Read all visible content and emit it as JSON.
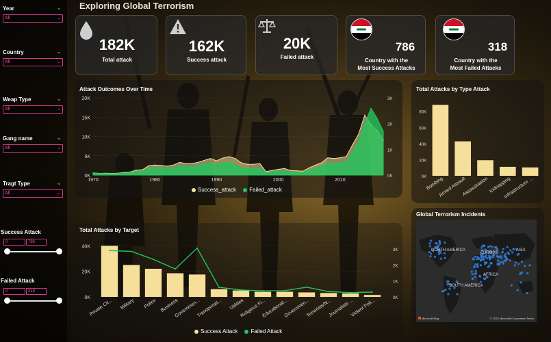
{
  "title": "Exploring Global Terrorism",
  "slicers": [
    {
      "label": "Year",
      "value": "All"
    },
    {
      "label": "Country",
      "value": "All"
    },
    {
      "label": "Weap Type",
      "value": "All"
    },
    {
      "label": "Gang name",
      "value": "All"
    },
    {
      "label": "Tragt Type",
      "value": "All"
    }
  ],
  "ranges": [
    {
      "label": "Success Attack",
      "min": "0",
      "max": "786"
    },
    {
      "label": "Failed Attack",
      "min": "0",
      "max": "318"
    }
  ],
  "kpis": {
    "total": {
      "value": "182K",
      "label": "Total attack",
      "icon": "drop-icon"
    },
    "success": {
      "value": "162K",
      "label": "Success attack",
      "icon": "warning-icon"
    },
    "failed": {
      "value": "20K",
      "label": "Failed attack",
      "icon": "scales-icon"
    },
    "most_success": {
      "value": "786",
      "label_line1": "Country with the",
      "label_line2": "Most Success Attacks",
      "icon": "iraq-flag-icon"
    },
    "most_failed": {
      "value": "318",
      "label_line1": "Country with the",
      "label_line2": "Most Failed Attacks",
      "icon": "iraq-flag-icon"
    }
  },
  "colors": {
    "success": "#f5df9a",
    "failed": "#22c55e",
    "slicer_accent": "#d33a8c",
    "map_dots": "#2f7fe0"
  },
  "map": {
    "title": "Global Terrorism Incidents",
    "labels": [
      "NORTH AMERICA",
      "EUROPE",
      "ASIA",
      "AFRICA",
      "SOUTH AMERICA"
    ],
    "credit": "Microsoft Bing",
    "copyright": "© 2023 Microsoft Corporation  Terms"
  },
  "chart_data": [
    {
      "id": "outcomes",
      "type": "area",
      "title": "Attack Outcomes Over Time",
      "x_ticks": [
        "1970",
        "1980",
        "1990",
        "2000",
        "2010"
      ],
      "y_ticks_left": [
        "0K",
        "5K",
        "10K",
        "15K",
        "20K"
      ],
      "y_ticks_right": [
        "0K",
        "1K",
        "2K",
        "3K"
      ],
      "ylim_left": [
        0,
        20000
      ],
      "ylim_right": [
        0,
        3000
      ],
      "series": [
        {
          "name": "Success_attack",
          "axis": "left",
          "x": [
            1970,
            1971,
            1972,
            1973,
            1974,
            1975,
            1976,
            1977,
            1978,
            1979,
            1980,
            1981,
            1982,
            1983,
            1984,
            1985,
            1986,
            1987,
            1988,
            1989,
            1990,
            1991,
            1992,
            1993,
            1994,
            1995,
            1996,
            1997,
            1998,
            1999,
            2000,
            2001,
            2002,
            2003,
            2004,
            2005,
            2006,
            2007,
            2008,
            2009,
            2010,
            2011,
            2012,
            2013,
            2014,
            2015,
            2016,
            2017
          ],
          "values": [
            600,
            450,
            500,
            420,
            500,
            700,
            800,
            1300,
            1400,
            2400,
            2600,
            2500,
            2300,
            2600,
            3300,
            3000,
            3000,
            3300,
            3800,
            4300,
            3700,
            4400,
            4800,
            4300,
            3200,
            2800,
            2800,
            3000,
            900,
            1200,
            1500,
            1700,
            1200,
            1100,
            1000,
            1900,
            2600,
            3200,
            4500,
            4300,
            4500,
            4800,
            7800,
            10600,
            15500,
            13000,
            11500,
            9000
          ]
        },
        {
          "name": "Failed_attack",
          "axis": "right",
          "x": [
            1970,
            1971,
            1972,
            1973,
            1974,
            1975,
            1976,
            1977,
            1978,
            1979,
            1980,
            1981,
            1982,
            1983,
            1984,
            1985,
            1986,
            1987,
            1988,
            1989,
            1990,
            1991,
            1992,
            1993,
            1994,
            1995,
            1996,
            1997,
            1998,
            1999,
            2000,
            2001,
            2002,
            2003,
            2004,
            2005,
            2006,
            2007,
            2008,
            2009,
            2010,
            2011,
            2012,
            2013,
            2014,
            2015,
            2016,
            2017
          ],
          "values": [
            90,
            60,
            60,
            50,
            60,
            80,
            100,
            150,
            160,
            260,
            300,
            290,
            270,
            290,
            370,
            340,
            330,
            380,
            430,
            470,
            410,
            480,
            500,
            420,
            300,
            260,
            260,
            270,
            100,
            130,
            150,
            170,
            130,
            120,
            120,
            200,
            280,
            350,
            480,
            460,
            500,
            520,
            900,
            1300,
            2000,
            2600,
            2200,
            1700
          ]
        }
      ]
    },
    {
      "id": "by_type",
      "type": "bar",
      "title": "Total Attacks by Type Attack",
      "categories": [
        "Bombing",
        "Armed Assault",
        "Assassination",
        "Kidnapping",
        "Infrastructure ..."
      ],
      "values": [
        88000,
        42700,
        19300,
        11100,
        10400
      ],
      "y_ticks": [
        "0K",
        "20K",
        "40K",
        "60K",
        "80K"
      ],
      "ylim": [
        0,
        95000
      ]
    },
    {
      "id": "by_target",
      "type": "bar",
      "title": "Total Attacks by Target",
      "categories": [
        "Private Cit...",
        "Military",
        "Police",
        "Business",
        "Governmen...",
        "Transportat...",
        "Utilities",
        "Religious Fi...",
        "Educational...",
        "Governmen...",
        "Terrorists/N...",
        "Journalists ...",
        "Violent Poli..."
      ],
      "y_ticks_left": [
        "0K",
        "20K",
        "40K"
      ],
      "y_ticks_right": [
        "0K",
        "1K",
        "2K",
        "3K"
      ],
      "ylim_left": [
        0,
        45000
      ],
      "ylim_right": [
        0,
        3600
      ],
      "series": [
        {
          "name": "Success Attack",
          "type": "bar",
          "axis": "left",
          "values": [
            40000,
            25000,
            22000,
            18500,
            17500,
            6000,
            5000,
            4000,
            4000,
            3500,
            3000,
            2700,
            1500
          ]
        },
        {
          "name": "Failed Attack",
          "type": "line",
          "axis": "right",
          "values": [
            2900,
            2850,
            2350,
            1750,
            3050,
            600,
            430,
            380,
            390,
            610,
            330,
            270,
            300
          ]
        }
      ]
    }
  ],
  "legends": {
    "outcomes": [
      "Success_attack",
      "Failed_attack"
    ],
    "target": [
      "Success Attack",
      "Failed Attack"
    ]
  }
}
